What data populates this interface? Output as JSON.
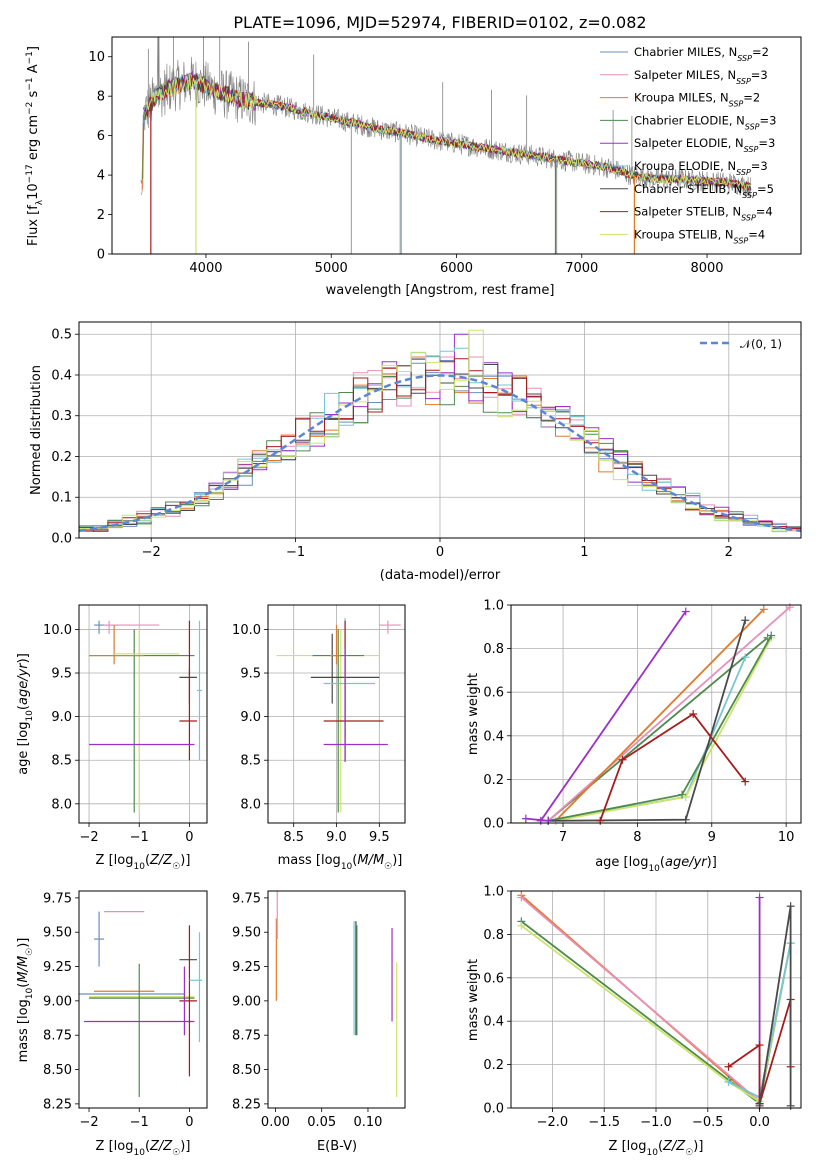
{
  "title": "PLATE=1096, MJD=52974, FIBERID=0102, z=0.082",
  "colors": [
    "#6c8ebf",
    "#e88fb9",
    "#e07b2a",
    "#4f8a4f",
    "#9b30c8",
    "#76c6d3",
    "#4a4a4a",
    "#a61c1c",
    "#cbe56b",
    "#808080"
  ],
  "chart_data": [
    {
      "type": "line",
      "name": "spectrum",
      "xlabel": "wavelength [Angstrom, rest frame]",
      "ylabel": "Flux [fλ10^-17 erg cm^-2 s^-1 A^-1]",
      "xlim": [
        3250,
        8750
      ],
      "ylim": [
        0,
        11
      ],
      "xticks": [
        4000,
        5000,
        6000,
        7000,
        8000
      ],
      "yticks": [
        0,
        2,
        4,
        6,
        8,
        10
      ],
      "grid": false,
      "legend_position": "top-right",
      "series": [
        {
          "name": "Chabrier MILES, N_SSP=2",
          "color": "#6c8ebf"
        },
        {
          "name": "Salpeter MILES, N_SSP=3",
          "color": "#e88fb9"
        },
        {
          "name": "Kroupa MILES, N_SSP=2",
          "color": "#e07b2a"
        },
        {
          "name": "Chabrier ELODIE, N_SSP=3",
          "color": "#4f8a4f"
        },
        {
          "name": "Salpeter ELODIE, N_SSP=3",
          "color": "#9b30c8"
        },
        {
          "name": "Kroupa ELODIE, N_SSP=3",
          "color": "#76c6d3"
        },
        {
          "name": "Chabrier STELIB, N_SSP=5",
          "color": "#4a4a4a"
        },
        {
          "name": "Salpeter STELIB, N_SSP=4",
          "color": "#a61c1c"
        },
        {
          "name": "Kroupa STELIB, N_SSP=4",
          "color": "#cbe56b"
        }
      ],
      "data_points": [
        [
          3500,
          7.0
        ],
        [
          3600,
          8.0
        ],
        [
          3700,
          8.4
        ],
        [
          3800,
          8.6
        ],
        [
          3900,
          8.8
        ],
        [
          4000,
          8.5
        ],
        [
          4100,
          8.2
        ],
        [
          4200,
          8.0
        ],
        [
          4300,
          7.8
        ],
        [
          4400,
          7.7
        ],
        [
          4600,
          7.5
        ],
        [
          4800,
          7.2
        ],
        [
          5000,
          6.9
        ],
        [
          5200,
          6.6
        ],
        [
          5400,
          6.3
        ],
        [
          5600,
          6.1
        ],
        [
          5800,
          5.8
        ],
        [
          6000,
          5.6
        ],
        [
          6200,
          5.4
        ],
        [
          6400,
          5.2
        ],
        [
          6600,
          5.0
        ],
        [
          6800,
          4.8
        ],
        [
          7000,
          4.6
        ],
        [
          7200,
          4.4
        ],
        [
          7400,
          4.0
        ],
        [
          7600,
          3.8
        ],
        [
          7800,
          3.8
        ],
        [
          8000,
          3.7
        ],
        [
          8200,
          3.6
        ],
        [
          8350,
          3.4
        ]
      ]
    },
    {
      "type": "line",
      "name": "residual-histogram",
      "xlabel": "(data-model)/error",
      "ylabel": "Normed distribution",
      "xlim": [
        -2.5,
        2.5
      ],
      "ylim": [
        0,
        0.53
      ],
      "xticks": [
        -2,
        -1,
        0,
        1,
        2
      ],
      "yticks": [
        0.0,
        0.1,
        0.2,
        0.3,
        0.4,
        0.5
      ],
      "grid": true,
      "legend": [
        "N(0,1)"
      ],
      "legend_position": "top-right"
    },
    {
      "type": "scatter",
      "name": "age-vs-Z",
      "xlabel": "Z [log10(Z/Z☉)]",
      "ylabel": "age [log10(age/yr)]",
      "xlim": [
        -2.2,
        0.35
      ],
      "ylim": [
        7.78,
        10.28
      ],
      "xticks": [
        -2,
        -1,
        0
      ],
      "yticks": [
        8.0,
        8.5,
        9.0,
        9.5,
        10.0
      ],
      "grid": true
    },
    {
      "type": "scatter",
      "name": "age-vs-mass",
      "xlabel": "mass [log10(M/M☉)]",
      "xlim": [
        8.2,
        9.8
      ],
      "ylim": [
        7.78,
        10.28
      ],
      "xticks": [
        8.5,
        9.0,
        9.5
      ],
      "yticks": [
        8.0,
        8.5,
        9.0,
        9.5,
        10.0
      ],
      "grid": true
    },
    {
      "type": "line",
      "name": "weight-vs-age",
      "xlabel": "age [log10(age/yr)]",
      "ylabel": "mass weight",
      "xlim": [
        6.3,
        10.2
      ],
      "ylim": [
        0,
        1
      ],
      "xticks": [
        7,
        8,
        9,
        10
      ],
      "yticks": [
        0.0,
        0.2,
        0.4,
        0.6,
        0.8,
        1.0
      ],
      "grid": true
    },
    {
      "type": "scatter",
      "name": "mass-vs-Z",
      "xlabel": "Z [log10(Z/Z☉)]",
      "ylabel": "mass [log10(M/M☉)]",
      "xlim": [
        -2.2,
        0.35
      ],
      "ylim": [
        8.22,
        9.8
      ],
      "xticks": [
        -2,
        -1,
        0
      ],
      "yticks": [
        8.25,
        8.5,
        8.75,
        9.0,
        9.25,
        9.5,
        9.75
      ],
      "grid": false
    },
    {
      "type": "scatter",
      "name": "mass-vs-ebv",
      "xlabel": "E(B-V)",
      "xlim": [
        -0.008,
        0.14
      ],
      "ylim": [
        8.22,
        9.8
      ],
      "xticks": [
        0.0,
        0.05,
        0.1
      ],
      "yticks": [
        8.25,
        8.5,
        8.75,
        9.0,
        9.25,
        9.5,
        9.75
      ],
      "grid": false
    },
    {
      "type": "line",
      "name": "weight-vs-Z",
      "xlabel": "Z [log10(Z/Z☉)]",
      "ylabel": "mass weight",
      "xlim": [
        -2.4,
        0.4
      ],
      "ylim": [
        0,
        1
      ],
      "xticks": [
        -2.0,
        -1.5,
        -1.0,
        -0.5,
        0.0
      ],
      "yticks": [
        0.0,
        0.2,
        0.4,
        0.6,
        0.8,
        1.0
      ],
      "grid": true
    }
  ]
}
